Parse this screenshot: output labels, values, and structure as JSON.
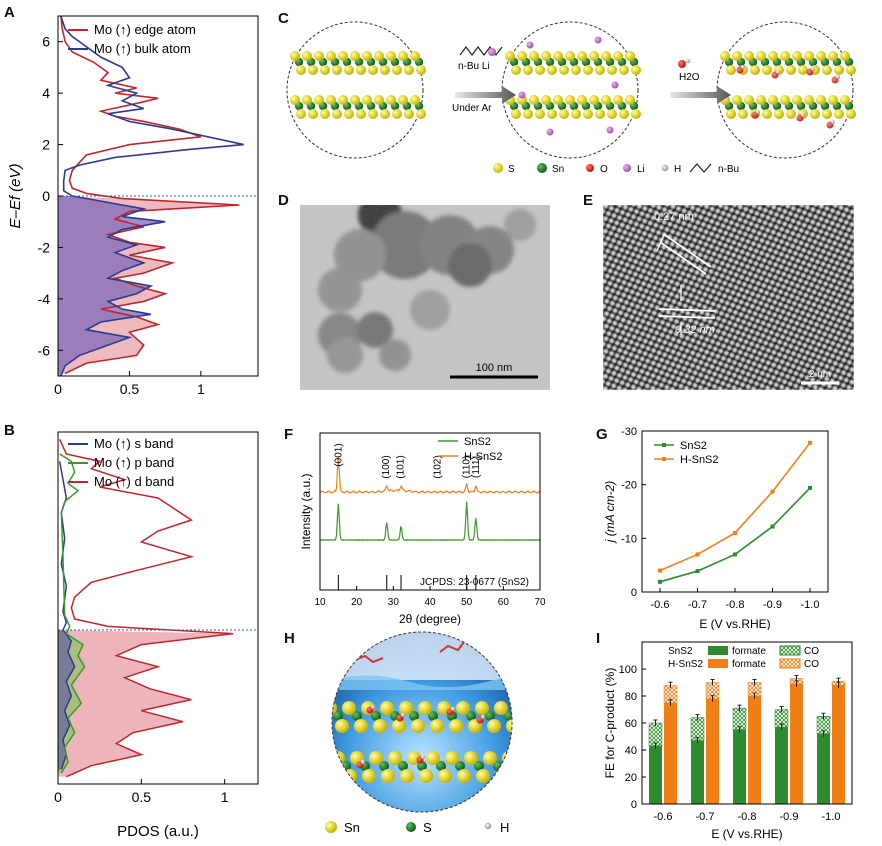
{
  "panels": {
    "A": "A",
    "B": "B",
    "C": "C",
    "D": "D",
    "E": "E",
    "F": "F",
    "G": "G",
    "H": "H",
    "I": "I"
  },
  "colors": {
    "red": "#c0262d",
    "blue": "#2e3a8c",
    "green": "#3a9a2a",
    "orange": "#f07f16",
    "dgreen": "#2e8b2e"
  },
  "panel_c": {
    "reagent_top": "n-Bu Li",
    "reagent_bottom": "Under Ar",
    "water": "H2O",
    "legend": [
      "S",
      "Sn",
      "O",
      "Li",
      "H",
      "n-Bu"
    ]
  },
  "panel_d": {
    "scale_bar": "100 nm"
  },
  "panel_e": {
    "d1": "0.27 nm",
    "d2": "0.32 nm",
    "scale_bar": "2 nm"
  },
  "panel_h": {
    "legend": [
      "Sn",
      "S",
      "H"
    ]
  },
  "chart_data": [
    {
      "panel": "A",
      "type": "line",
      "xlabel": "",
      "ylabel": "E–Ef (eV)",
      "xlim": [
        0,
        1.4
      ],
      "ylim": [
        -7,
        7
      ],
      "xticks": [
        0,
        0.5,
        1.0
      ],
      "yticks": [
        -6,
        -4,
        -2,
        0,
        2,
        4,
        6
      ],
      "series": [
        {
          "name": "Mo (↑) edge atom",
          "color": "#c0262d",
          "points": [
            [
              0.02,
              7
            ],
            [
              0.03,
              6.5
            ],
            [
              0.05,
              6
            ],
            [
              0.1,
              5.6
            ],
            [
              0.25,
              5.2
            ],
            [
              0.35,
              4.8
            ],
            [
              0.3,
              4.5
            ],
            [
              0.55,
              4.2
            ],
            [
              0.4,
              4.0
            ],
            [
              0.7,
              3.8
            ],
            [
              0.55,
              3.6
            ],
            [
              0.3,
              3.3
            ],
            [
              0.4,
              3.1
            ],
            [
              0.6,
              2.9
            ],
            [
              0.85,
              2.6
            ],
            [
              1.0,
              2.3
            ],
            [
              0.5,
              2.0
            ],
            [
              0.2,
              1.6
            ],
            [
              0.15,
              1.3
            ],
            [
              0.1,
              1.0
            ],
            [
              0.08,
              0.6
            ],
            [
              0.1,
              0.3
            ],
            [
              0.2,
              0.1
            ],
            [
              0.45,
              -0.1
            ],
            [
              1.27,
              -0.35
            ],
            [
              0.5,
              -0.6
            ],
            [
              0.4,
              -0.9
            ],
            [
              0.6,
              -1.2
            ],
            [
              0.35,
              -1.5
            ],
            [
              0.5,
              -1.8
            ],
            [
              0.75,
              -2.0
            ],
            [
              0.5,
              -2.3
            ],
            [
              0.8,
              -2.6
            ],
            [
              0.6,
              -3.0
            ],
            [
              0.4,
              -3.2
            ],
            [
              0.55,
              -3.5
            ],
            [
              0.75,
              -3.8
            ],
            [
              0.6,
              -4.1
            ],
            [
              0.3,
              -4.4
            ],
            [
              0.55,
              -4.7
            ],
            [
              0.7,
              -5.0
            ],
            [
              0.5,
              -5.3
            ],
            [
              0.6,
              -5.8
            ],
            [
              0.55,
              -6.2
            ],
            [
              0.2,
              -6.5
            ],
            [
              0.05,
              -6.9
            ]
          ]
        },
        {
          "name": "Mo (↑) bulk atom",
          "color": "#2e3a8c",
          "points": [
            [
              0.02,
              7
            ],
            [
              0.05,
              6.5
            ],
            [
              0.1,
              6.2
            ],
            [
              0.2,
              5.8
            ],
            [
              0.3,
              5.4
            ],
            [
              0.45,
              5.0
            ],
            [
              0.5,
              4.6
            ],
            [
              0.35,
              4.3
            ],
            [
              0.55,
              4.0
            ],
            [
              0.45,
              3.7
            ],
            [
              0.6,
              3.4
            ],
            [
              0.35,
              3.2
            ],
            [
              0.5,
              2.9
            ],
            [
              0.8,
              2.6
            ],
            [
              1.3,
              2.0
            ],
            [
              0.9,
              1.8
            ],
            [
              0.4,
              1.5
            ],
            [
              0.15,
              1.2
            ],
            [
              0.05,
              1.0
            ],
            [
              0.04,
              0.6
            ],
            [
              0.04,
              0.2
            ],
            [
              0.1,
              0.0
            ],
            [
              0.3,
              -0.2
            ],
            [
              0.6,
              -0.5
            ],
            [
              0.45,
              -0.8
            ],
            [
              0.75,
              -1.0
            ],
            [
              0.45,
              -1.3
            ],
            [
              0.35,
              -1.6
            ],
            [
              0.55,
              -1.9
            ],
            [
              0.4,
              -2.2
            ],
            [
              0.6,
              -2.6
            ],
            [
              0.45,
              -2.9
            ],
            [
              0.35,
              -3.2
            ],
            [
              0.65,
              -3.5
            ],
            [
              0.55,
              -3.8
            ],
            [
              0.35,
              -4.1
            ],
            [
              0.45,
              -4.4
            ],
            [
              0.65,
              -4.6
            ],
            [
              0.3,
              -4.9
            ],
            [
              0.2,
              -5.2
            ],
            [
              0.5,
              -5.5
            ],
            [
              0.35,
              -5.8
            ],
            [
              0.15,
              -6.2
            ],
            [
              0.05,
              -6.6
            ],
            [
              0.02,
              -7
            ]
          ]
        }
      ],
      "fermi_level": 0
    },
    {
      "panel": "B",
      "type": "line",
      "xlabel": "PDOS (a.u.)",
      "ylabel": "",
      "xlim": [
        0,
        1.2
      ],
      "xticks": [
        0,
        0.5,
        1.0
      ],
      "series": [
        {
          "name": "Mo (↑) s band",
          "color": "#2e3a8c",
          "points": [
            [
              0.01,
              4.6
            ],
            [
              0.03,
              4.1
            ],
            [
              0.05,
              3.6
            ],
            [
              0.02,
              3.2
            ],
            [
              0.04,
              2.5
            ],
            [
              0.02,
              1.8
            ],
            [
              0.05,
              1.2
            ],
            [
              0.03,
              0.5
            ],
            [
              0.05,
              0.2
            ],
            [
              0.03,
              0.0
            ],
            [
              0.08,
              -0.3
            ],
            [
              0.06,
              -0.6
            ],
            [
              0.1,
              -1.0
            ],
            [
              0.05,
              -1.4
            ],
            [
              0.08,
              -1.8
            ],
            [
              0.04,
              -2.2
            ],
            [
              0.07,
              -2.6
            ],
            [
              0.03,
              -3.0
            ],
            [
              0.05,
              -3.4
            ],
            [
              0.02,
              -3.8
            ]
          ]
        },
        {
          "name": "Mo (↑) p band",
          "color": "#3a9a2a",
          "points": [
            [
              0.01,
              4.8
            ],
            [
              0.08,
              4.6
            ],
            [
              0.1,
              4.3
            ],
            [
              0.06,
              4.0
            ],
            [
              0.12,
              3.8
            ],
            [
              0.04,
              3.5
            ],
            [
              0.02,
              3.2
            ],
            [
              0.03,
              2.0
            ],
            [
              0.04,
              0.4
            ],
            [
              0.07,
              0.1
            ],
            [
              0.05,
              -0.1
            ],
            [
              0.15,
              -0.4
            ],
            [
              0.12,
              -0.7
            ],
            [
              0.16,
              -1.0
            ],
            [
              0.08,
              -1.5
            ],
            [
              0.14,
              -2.0
            ],
            [
              0.06,
              -2.4
            ],
            [
              0.1,
              -2.8
            ],
            [
              0.04,
              -3.2
            ],
            [
              0.06,
              -3.6
            ],
            [
              0.02,
              -3.9
            ]
          ]
        },
        {
          "name": "Mo (↑) d band",
          "color": "#c0262d",
          "points": [
            [
              0.01,
              5.2
            ],
            [
              0.05,
              4.8
            ],
            [
              0.25,
              4.6
            ],
            [
              0.2,
              4.4
            ],
            [
              0.4,
              4.1
            ],
            [
              0.25,
              3.9
            ],
            [
              0.6,
              3.6
            ],
            [
              0.8,
              3.0
            ],
            [
              0.6,
              2.7
            ],
            [
              0.5,
              2.4
            ],
            [
              0.8,
              2.0
            ],
            [
              0.45,
              1.6
            ],
            [
              0.2,
              1.3
            ],
            [
              0.1,
              0.9
            ],
            [
              0.08,
              0.6
            ],
            [
              0.1,
              0.3
            ],
            [
              0.3,
              0.1
            ],
            [
              1.05,
              -0.1
            ],
            [
              0.5,
              -0.4
            ],
            [
              0.35,
              -0.7
            ],
            [
              0.6,
              -1.0
            ],
            [
              0.4,
              -1.3
            ],
            [
              0.55,
              -1.6
            ],
            [
              0.8,
              -1.9
            ],
            [
              0.5,
              -2.2
            ],
            [
              0.75,
              -2.5
            ],
            [
              0.45,
              -2.8
            ],
            [
              0.35,
              -3.1
            ],
            [
              0.5,
              -3.4
            ],
            [
              0.2,
              -3.7
            ],
            [
              0.05,
              -4.0
            ]
          ]
        }
      ]
    },
    {
      "panel": "F",
      "type": "line",
      "xlabel": "2θ (degree)",
      "ylabel": "Intensity (a.u.)",
      "xlim": [
        10,
        70
      ],
      "xticks": [
        10,
        20,
        30,
        40,
        50,
        60,
        70
      ],
      "peak_labels": [
        {
          "label": "(001)",
          "x": 15
        },
        {
          "label": "(100)",
          "x": 28
        },
        {
          "label": "(101)",
          "x": 32
        },
        {
          "label": "(102)",
          "x": 42
        },
        {
          "label": "(110)",
          "x": 50
        },
        {
          "label": "(111)",
          "x": 52.5
        }
      ],
      "reference": "JCPDS: 23-0677 (SnS2)",
      "reference_lines": [
        15,
        28.2,
        32.1,
        50,
        52.5
      ],
      "series": [
        {
          "name": "SnS2",
          "color": "#3a9a2a",
          "peaks": [
            [
              15,
              0.9
            ],
            [
              28.2,
              0.45
            ],
            [
              32.1,
              0.35
            ],
            [
              50,
              0.95
            ],
            [
              52.5,
              0.55
            ]
          ]
        },
        {
          "name": "H-SnS2",
          "color": "#f07f16",
          "peaks": [
            [
              15,
              0.9
            ],
            [
              28.2,
              0.15
            ],
            [
              32.1,
              0.12
            ],
            [
              50,
              0.2
            ],
            [
              52.5,
              0.15
            ]
          ]
        }
      ]
    },
    {
      "panel": "G",
      "type": "line",
      "xlabel": "E (V vs.RHE)",
      "ylabel": "j (mA cm-2)",
      "categories": [
        "-0.6",
        "-0.7",
        "-0.8",
        "-0.9",
        "-1.0"
      ],
      "ylim": [
        0,
        -30
      ],
      "yticks": [
        0,
        -10,
        -20,
        -30
      ],
      "series": [
        {
          "name": "SnS2",
          "color": "#2e8b2e",
          "values": [
            -1.9,
            -3.9,
            -7.0,
            -12.2,
            -19.4
          ]
        },
        {
          "name": "H-SnS2",
          "color": "#f07f16",
          "values": [
            -4.0,
            -7.0,
            -11.0,
            -18.7,
            -27.8
          ]
        }
      ]
    },
    {
      "panel": "I",
      "type": "bar",
      "xlabel": "E (V vs.RHE)",
      "ylabel": "FE for C-product (%)",
      "categories": [
        "-0.6",
        "-0.7",
        "-0.8",
        "-0.9",
        "-1.0"
      ],
      "ylim": [
        0,
        120
      ],
      "yticks": [
        0,
        20,
        40,
        60,
        80,
        100
      ],
      "series": [
        {
          "name": "SnS2 formate",
          "color": "#2e8b2e",
          "values": [
            43,
            47,
            55,
            57,
            52
          ]
        },
        {
          "name": "SnS2 CO",
          "color": "#2e8b2e",
          "pattern": "hatched",
          "values": [
            17,
            17,
            16,
            13,
            13
          ]
        },
        {
          "name": "H-SnS2 formate",
          "color": "#f07f16",
          "values": [
            75,
            78,
            80,
            89,
            88
          ]
        },
        {
          "name": "H-SnS2 CO",
          "color": "#f07f16",
          "pattern": "hatched",
          "values": [
            13,
            12,
            10,
            4,
            3
          ]
        }
      ],
      "legend_labels": {
        "row1": "SnS2",
        "row2": "H-SnS2",
        "formate": "formate",
        "co": "CO"
      }
    }
  ]
}
